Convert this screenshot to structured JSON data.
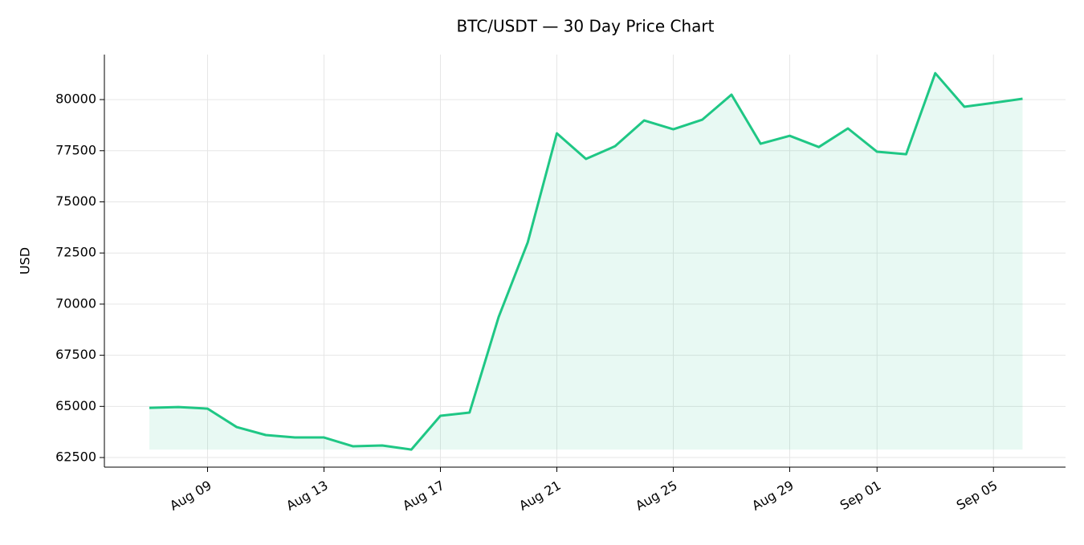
{
  "chart_data": {
    "type": "line",
    "title": "BTC/USDT — 30 Day Price Chart",
    "y_label": "USD",
    "categories": [
      null,
      null,
      "Aug 09",
      null,
      null,
      null,
      "Aug 13",
      null,
      null,
      null,
      "Aug 17",
      null,
      null,
      null,
      "Aug 21",
      null,
      null,
      null,
      "Aug 25",
      null,
      null,
      null,
      "Aug 29",
      null,
      null,
      "Sep 01",
      null,
      null,
      null,
      "Sep 05",
      null
    ],
    "series": [
      {
        "name": "BTC/USDT",
        "color": "#1fc785",
        "fill": true,
        "values": [
          64930,
          64970,
          64890,
          63990,
          63600,
          63480,
          63480,
          63050,
          63090,
          62890,
          64540,
          64700,
          69370,
          73020,
          78350,
          77100,
          77720,
          78980,
          78550,
          79020,
          80240,
          77840,
          78230,
          77680,
          78590,
          77450,
          77330,
          81290,
          79650,
          79840,
          80040
        ]
      }
    ],
    "ylim": [
      62030,
      82200
    ],
    "yticks": [
      62500,
      65000,
      67500,
      70000,
      72500,
      75000,
      77500,
      80000
    ],
    "grid": true
  }
}
